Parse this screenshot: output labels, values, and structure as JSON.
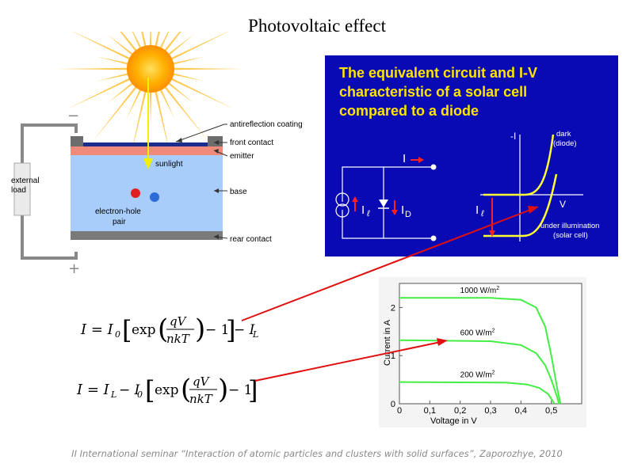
{
  "title": "Photovoltaic effect",
  "cell": {
    "labels": {
      "antireflection": "antireflection coating",
      "front_contact": "front contact",
      "emitter": "emitter",
      "base": "base",
      "rear_contact": "rear contact",
      "sunlight": "sunlight",
      "pair_line1": "electron-hole",
      "pair_line2": "pair",
      "load_line1": "external",
      "load_line2": "load",
      "minus": "−",
      "plus": "+"
    },
    "colors": {
      "base": "#a9cdfa",
      "emitter": "#f08a7a",
      "coating": "#1a2c8c",
      "contact": "#7a7a7a",
      "sun": "#ffb000",
      "sunlight_arrow": "#f0f000"
    }
  },
  "circuit": {
    "title_lines": [
      "The equivalent circuit and I-V",
      "characteristic of a solar cell",
      "compared to a diode"
    ],
    "labels": {
      "I": "I",
      "I_l": "I",
      "I_l_sub": "ℓ",
      "I_D": "I",
      "I_D_sub": "D",
      "minus_I": "-I",
      "V": "V",
      "I_l2": "I",
      "I_l2_sub": "ℓ",
      "dark1": "dark",
      "dark2": "(diode)",
      "illum1": "under illumination",
      "illum2": "(solar cell)"
    },
    "colors": {
      "panel": "#0a0ab4",
      "title": "#ffe400",
      "curve": "#ffff33",
      "arrow": "#ff2020"
    }
  },
  "equations": {
    "eq1": {
      "lhs": "I = I",
      "sub0": "0",
      "exp": "exp",
      "num": "qV",
      "den": "nkT",
      "minus1": "− 1",
      "tail": "− I",
      "subL": "L"
    },
    "eq2": {
      "lhs": "I = I",
      "subL": "L",
      "mid": "− I",
      "sub0": "0",
      "exp": "exp",
      "num": "qV",
      "den": "nkT",
      "minus1": "− 1"
    }
  },
  "chart_data": {
    "type": "line",
    "xlabel": "Voltage in V",
    "ylabel": "Current in A",
    "xlim": [
      0,
      0.6
    ],
    "ylim": [
      0,
      2.5
    ],
    "x_ticks": [
      "0",
      "0,1",
      "0,2",
      "0,3",
      "0,4",
      "0,5"
    ],
    "y_ticks": [
      "0",
      "1",
      "2"
    ],
    "series": [
      {
        "name": "1000 W/m²",
        "label": "1000 W/m",
        "sup": "2",
        "isc": 2.2,
        "points": [
          [
            0,
            2.2
          ],
          [
            0.3,
            2.2
          ],
          [
            0.4,
            2.16
          ],
          [
            0.45,
            2.0
          ],
          [
            0.48,
            1.6
          ],
          [
            0.5,
            1.0
          ],
          [
            0.52,
            0.3
          ],
          [
            0.53,
            0.0
          ]
        ]
      },
      {
        "name": "600 W/m²",
        "label": "600 W/m",
        "sup": "2",
        "isc": 1.32,
        "points": [
          [
            0,
            1.32
          ],
          [
            0.3,
            1.3
          ],
          [
            0.4,
            1.22
          ],
          [
            0.45,
            1.05
          ],
          [
            0.48,
            0.8
          ],
          [
            0.5,
            0.5
          ],
          [
            0.52,
            0.12
          ],
          [
            0.525,
            0.0
          ]
        ]
      },
      {
        "name": "200 W/m²",
        "label": "200 W/m",
        "sup": "2",
        "isc": 0.45,
        "points": [
          [
            0,
            0.45
          ],
          [
            0.35,
            0.44
          ],
          [
            0.42,
            0.4
          ],
          [
            0.46,
            0.33
          ],
          [
            0.49,
            0.2
          ],
          [
            0.505,
            0.05
          ],
          [
            0.51,
            0.0
          ]
        ]
      }
    ],
    "color": "#44ee44",
    "grid": false
  },
  "arrow_color": "#e01010",
  "footer": "II International seminar “Interaction of atomic particles and clusters with solid surfaces”, Zaporozhye, 2010"
}
